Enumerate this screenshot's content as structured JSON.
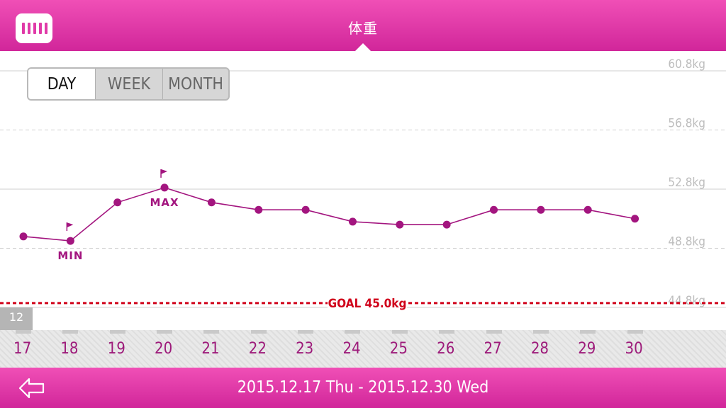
{
  "header": {
    "title": "体重"
  },
  "range_tabs": [
    {
      "label": "DAY",
      "active": true
    },
    {
      "label": "WEEK",
      "active": false
    },
    {
      "label": "MONTH",
      "active": false
    }
  ],
  "month_tag": "12",
  "footer": {
    "date_range": "2015.12.17 Thu - 2015.12.30 Wed"
  },
  "colors": {
    "accent": "#e03aa8",
    "line": "#a3157f",
    "goal": "#d0001a"
  },
  "chart_data": {
    "type": "line",
    "unit": "kg",
    "x": [
      "17",
      "18",
      "19",
      "20",
      "21",
      "22",
      "23",
      "24",
      "25",
      "26",
      "27",
      "28",
      "29",
      "30"
    ],
    "values": [
      49.6,
      49.3,
      51.9,
      52.9,
      51.9,
      51.4,
      51.4,
      50.6,
      50.4,
      50.4,
      51.4,
      51.4,
      51.4,
      50.8
    ],
    "y_ticks": [
      "60.8kg",
      "56.8kg",
      "52.8kg",
      "48.8kg",
      "44.8kg"
    ],
    "y_tick_values": [
      60.8,
      56.8,
      52.8,
      48.8,
      44.8
    ],
    "ylim": [
      44.0,
      61.0
    ],
    "goal": {
      "value": 45.0,
      "label": "GOAL 45.0kg"
    },
    "max_label": "MAX",
    "min_label": "MIN",
    "max_index": 3,
    "min_index": 1,
    "grid": true
  }
}
